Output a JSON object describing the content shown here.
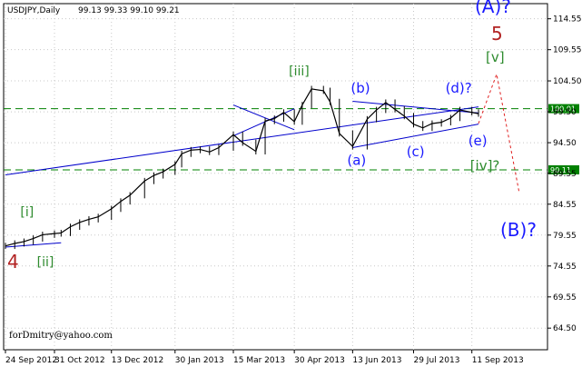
{
  "header": {
    "symbol": "USDJPY,Daily",
    "ohlc": "99.13 99.33 99.10 99.21"
  },
  "credit": "forDmitry@yahoo.com",
  "colors": {
    "price": "#000000",
    "trendline": "#0000cc",
    "level": "#008000",
    "wave_green": "#2e8b2e",
    "wave_blue": "#1a1aff",
    "wave_red": "#b22222",
    "forecast": "#e02020",
    "grid": "#c8c8c8"
  },
  "chart_data": {
    "type": "line",
    "x": [
      "24 Sep 2012",
      "01 Oct 2012",
      "08 Oct 2012",
      "15 Oct 2012",
      "22 Oct 2012",
      "31 Oct 2012",
      "05 Nov 2012",
      "12 Nov 2012",
      "19 Nov 2012",
      "26 Nov 2012",
      "03 Dec 2012",
      "13 Dec 2012",
      "20 Dec 2012",
      "27 Dec 2012",
      "07 Jan 2013",
      "14 Jan 2013",
      "21 Jan 2013",
      "30 Jan 2013",
      "04 Feb 2013",
      "11 Feb 2013",
      "18 Feb 2013",
      "25 Feb 2013",
      "04 Mar 2013",
      "15 Mar 2013",
      "22 Mar 2013",
      "01 Apr 2013",
      "08 Apr 2013",
      "15 Apr 2013",
      "22 Apr 2013",
      "30 Apr 2013",
      "06 May 2013",
      "13 May 2013",
      "22 May 2013",
      "27 May 2013",
      "03 Jun 2013",
      "13 Jun 2013",
      "24 Jun 2013",
      "01 Jul 2013",
      "08 Jul 2013",
      "15 Jul 2013",
      "22 Jul 2013",
      "29 Jul 2013",
      "05 Aug 2013",
      "12 Aug 2013",
      "19 Aug 2013",
      "26 Aug 2013",
      "02 Sep 2013",
      "11 Sep 2013",
      "16 Sep 2013"
    ],
    "series": [
      {
        "values": [
          77.8,
          78.2,
          78.5,
          79.0,
          79.6,
          79.8,
          79.9,
          80.9,
          81.6,
          82.1,
          82.5,
          83.8,
          85.0,
          86.0,
          88.3,
          89.2,
          89.8,
          91.0,
          92.7,
          93.3,
          93.4,
          93.0,
          93.7,
          95.8,
          94.5,
          93.1,
          98.0,
          98.4,
          99.4,
          97.9,
          100.6,
          103.2,
          102.9,
          101.1,
          96.0,
          93.9,
          98.3,
          99.8,
          101.0,
          99.9,
          98.8,
          97.5,
          96.9,
          97.6,
          97.8,
          98.5,
          99.8,
          99.4,
          99.2
        ]
      }
    ],
    "ylim": [
      61.0,
      117.0
    ],
    "y_ticks": [
      "114.55",
      "109.55",
      "104.50",
      "99.50",
      "94.50",
      "89.55",
      "84.55",
      "79.55",
      "74.55",
      "69.55",
      "64.50"
    ],
    "x_ticks": [
      "24 Sep 2012",
      "31 Oct 2012",
      "13 Dec 2012",
      "30 Jan 2013",
      "15 Mar 2013",
      "30 Apr 2013",
      "13 Jun 2013",
      "29 Jul 2013",
      "11 Sep 2013"
    ],
    "levels": [
      {
        "value": 100.01,
        "label": "100.01"
      },
      {
        "value": 90.11,
        "label": "90.11"
      }
    ],
    "trendlines": [
      {
        "from": [
          "24 Sep 2012",
          89.3
        ],
        "to": [
          "16 Sep 2013",
          100.3
        ]
      },
      {
        "from": [
          "24 Sep 2012",
          77.6
        ],
        "to": [
          "05 Nov 2012",
          78.3
        ]
      },
      {
        "from": [
          "13 Jun 2013",
          101.2
        ],
        "to": [
          "16 Sep 2013",
          99.3
        ]
      },
      {
        "from": [
          "13 Jun 2013",
          93.7
        ],
        "to": [
          "16 Sep 2013",
          97.5
        ]
      },
      {
        "from": [
          "15 Mar 2013",
          95.6
        ],
        "to": [
          "30 Apr 2013",
          100.0
        ]
      },
      {
        "from": [
          "15 Mar 2013",
          100.6
        ],
        "to": [
          "30 Apr 2013",
          96.6
        ]
      }
    ],
    "forecast_path": [
      [
        "16 Sep 2013",
        97.6
      ],
      [
        "16 Sep 2013",
        105.6
      ],
      [
        "16 Sep 2013",
        86.3
      ]
    ],
    "annotations": [
      {
        "text": "[i]",
        "x": "08 Oct 2012",
        "y": 82.6,
        "color": "#2e8b2e",
        "size": 14
      },
      {
        "text": "[ii]",
        "x": "15 Oct 2012",
        "y": 74.5,
        "color": "#2e8b2e",
        "size": 14
      },
      {
        "text": "4",
        "x": "24 Sep 2012",
        "y": 74.2,
        "color": "#b22222",
        "size": 20
      },
      {
        "text": "[iii]",
        "x": "30 Apr 2013",
        "y": 105.4,
        "color": "#2e8b2e",
        "size": 14
      },
      {
        "text": "(b)",
        "x": "13 Jun 2013",
        "y": 102.6,
        "color": "#1a1aff",
        "size": 15
      },
      {
        "text": "(a)",
        "x": "13 Jun 2013",
        "y": 90.9,
        "color": "#1a1aff",
        "size": 15
      },
      {
        "text": "(c)",
        "x": "05 Aug 2013",
        "y": 92.3,
        "color": "#1a1aff",
        "size": 15
      },
      {
        "text": "(d)?",
        "x": "02 Sep 2013",
        "y": 102.6,
        "color": "#1a1aff",
        "size": 15
      },
      {
        "text": "(e)",
        "x": "11 Sep 2013",
        "y": 94.1,
        "color": "#1a1aff",
        "size": 15
      },
      {
        "text": "[iv]?",
        "x": "11 Sep 2013",
        "y": 90.0,
        "color": "#2e8b2e",
        "size": 15
      },
      {
        "text": "[v]",
        "x": "16 Sep 2013",
        "y": 107.6,
        "color": "#2e8b2e",
        "size": 15
      },
      {
        "text": "5",
        "x": "16 Sep 2013",
        "y": 111.1,
        "color": "#b22222",
        "size": 20
      },
      {
        "text": "(A)?",
        "x": "16 Sep 2013",
        "y": 115.5,
        "color": "#1a1aff",
        "size": 20
      },
      {
        "text": "(B)?",
        "x": "16 Sep 2013",
        "y": 79.4,
        "color": "#1a1aff",
        "size": 20
      }
    ]
  }
}
